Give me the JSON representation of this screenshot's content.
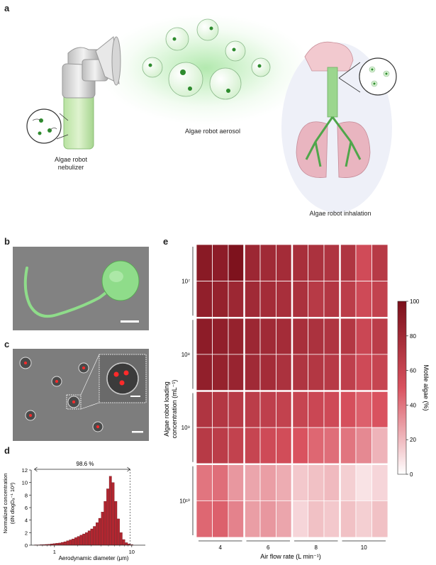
{
  "panel_a": {
    "letter": "a",
    "nebulizer_label": "Algae robot\nnebulizer",
    "aerosol_label": "Algae robot aerosol",
    "inhalation_label": "Algae robot inhalation"
  },
  "panel_b": {
    "letter": "b"
  },
  "panel_c": {
    "letter": "c"
  },
  "panel_d": {
    "letter": "d"
  },
  "panel_e": {
    "letter": "e"
  },
  "colors": {
    "algae_green": "#3d9a3d",
    "heat_high": "#7a0f1a",
    "heat_low": "#ffffff",
    "hist_bar": "#b22630"
  },
  "chart_data": [
    {
      "type": "bar",
      "panel": "d",
      "xlabel": "Aerodynamic diameter (μm)",
      "ylabel_line1": "Normalized concentration",
      "ylabel_line2": "(dN dlogDₐ⁻¹ 10³)",
      "x_scale": "log",
      "xlim": [
        0.5,
        15
      ],
      "ylim": [
        0,
        12
      ],
      "y_ticks": [
        "0",
        "2",
        "4",
        "6",
        "8",
        "10",
        "12"
      ],
      "x_ticks": [
        "1",
        "10"
      ],
      "annotation": "98.6 %",
      "annotation_range": [
        0.55,
        9.5
      ],
      "bins": [
        0.55,
        0.6,
        0.65,
        0.7,
        0.76,
        0.82,
        0.89,
        0.96,
        1.04,
        1.13,
        1.22,
        1.32,
        1.43,
        1.55,
        1.68,
        1.82,
        1.97,
        2.13,
        2.31,
        2.5,
        2.71,
        2.93,
        3.17,
        3.43,
        3.72,
        4.03,
        4.36,
        4.72,
        5.11,
        5.53,
        5.99,
        6.49,
        7.02,
        7.6,
        8.23,
        8.91,
        9.65
      ],
      "values": [
        0.05,
        0.05,
        0.08,
        0.1,
        0.12,
        0.15,
        0.2,
        0.25,
        0.3,
        0.35,
        0.45,
        0.55,
        0.7,
        0.85,
        1.0,
        1.2,
        1.4,
        1.6,
        1.8,
        2.0,
        2.3,
        2.6,
        3.0,
        3.6,
        4.3,
        5.3,
        7.0,
        9.0,
        11.0,
        10.0,
        7.0,
        4.2,
        2.0,
        0.9,
        0.4,
        0.2,
        0.1
      ]
    },
    {
      "type": "heatmap",
      "panel": "e",
      "xlabel": "Air flow rate (L min⁻¹)",
      "ylabel_line1": "Algae robot loading",
      "ylabel_line2": "concentration (mL⁻¹)",
      "x_groups": [
        "4",
        "6",
        "8",
        "10"
      ],
      "y_groups": [
        "10⁷",
        "10⁸",
        "10⁹",
        "10¹⁰"
      ],
      "colorbar_label": "Motile algae (%)",
      "colorbar_ticks": [
        "0",
        "20",
        "40",
        "60",
        "80",
        "100"
      ],
      "value_range": [
        0,
        100
      ],
      "values": [
        [
          92,
          90,
          98,
          82,
          80,
          78,
          76,
          74,
          72,
          72,
          55,
          68
        ],
        [
          88,
          86,
          82,
          80,
          78,
          76,
          74,
          68,
          70,
          66,
          56,
          62
        ],
        [
          90,
          88,
          86,
          82,
          80,
          78,
          76,
          74,
          72,
          70,
          58,
          66
        ],
        [
          88,
          86,
          84,
          80,
          78,
          74,
          72,
          70,
          68,
          64,
          56,
          60
        ],
        [
          72,
          70,
          68,
          66,
          64,
          62,
          60,
          58,
          56,
          52,
          46,
          50
        ],
        [
          68,
          66,
          62,
          60,
          56,
          54,
          50,
          44,
          42,
          40,
          34,
          22
        ],
        [
          40,
          42,
          30,
          26,
          28,
          24,
          16,
          18,
          20,
          14,
          8,
          12
        ],
        [
          44,
          46,
          36,
          28,
          30,
          26,
          12,
          18,
          16,
          18,
          14,
          18
        ]
      ]
    }
  ]
}
